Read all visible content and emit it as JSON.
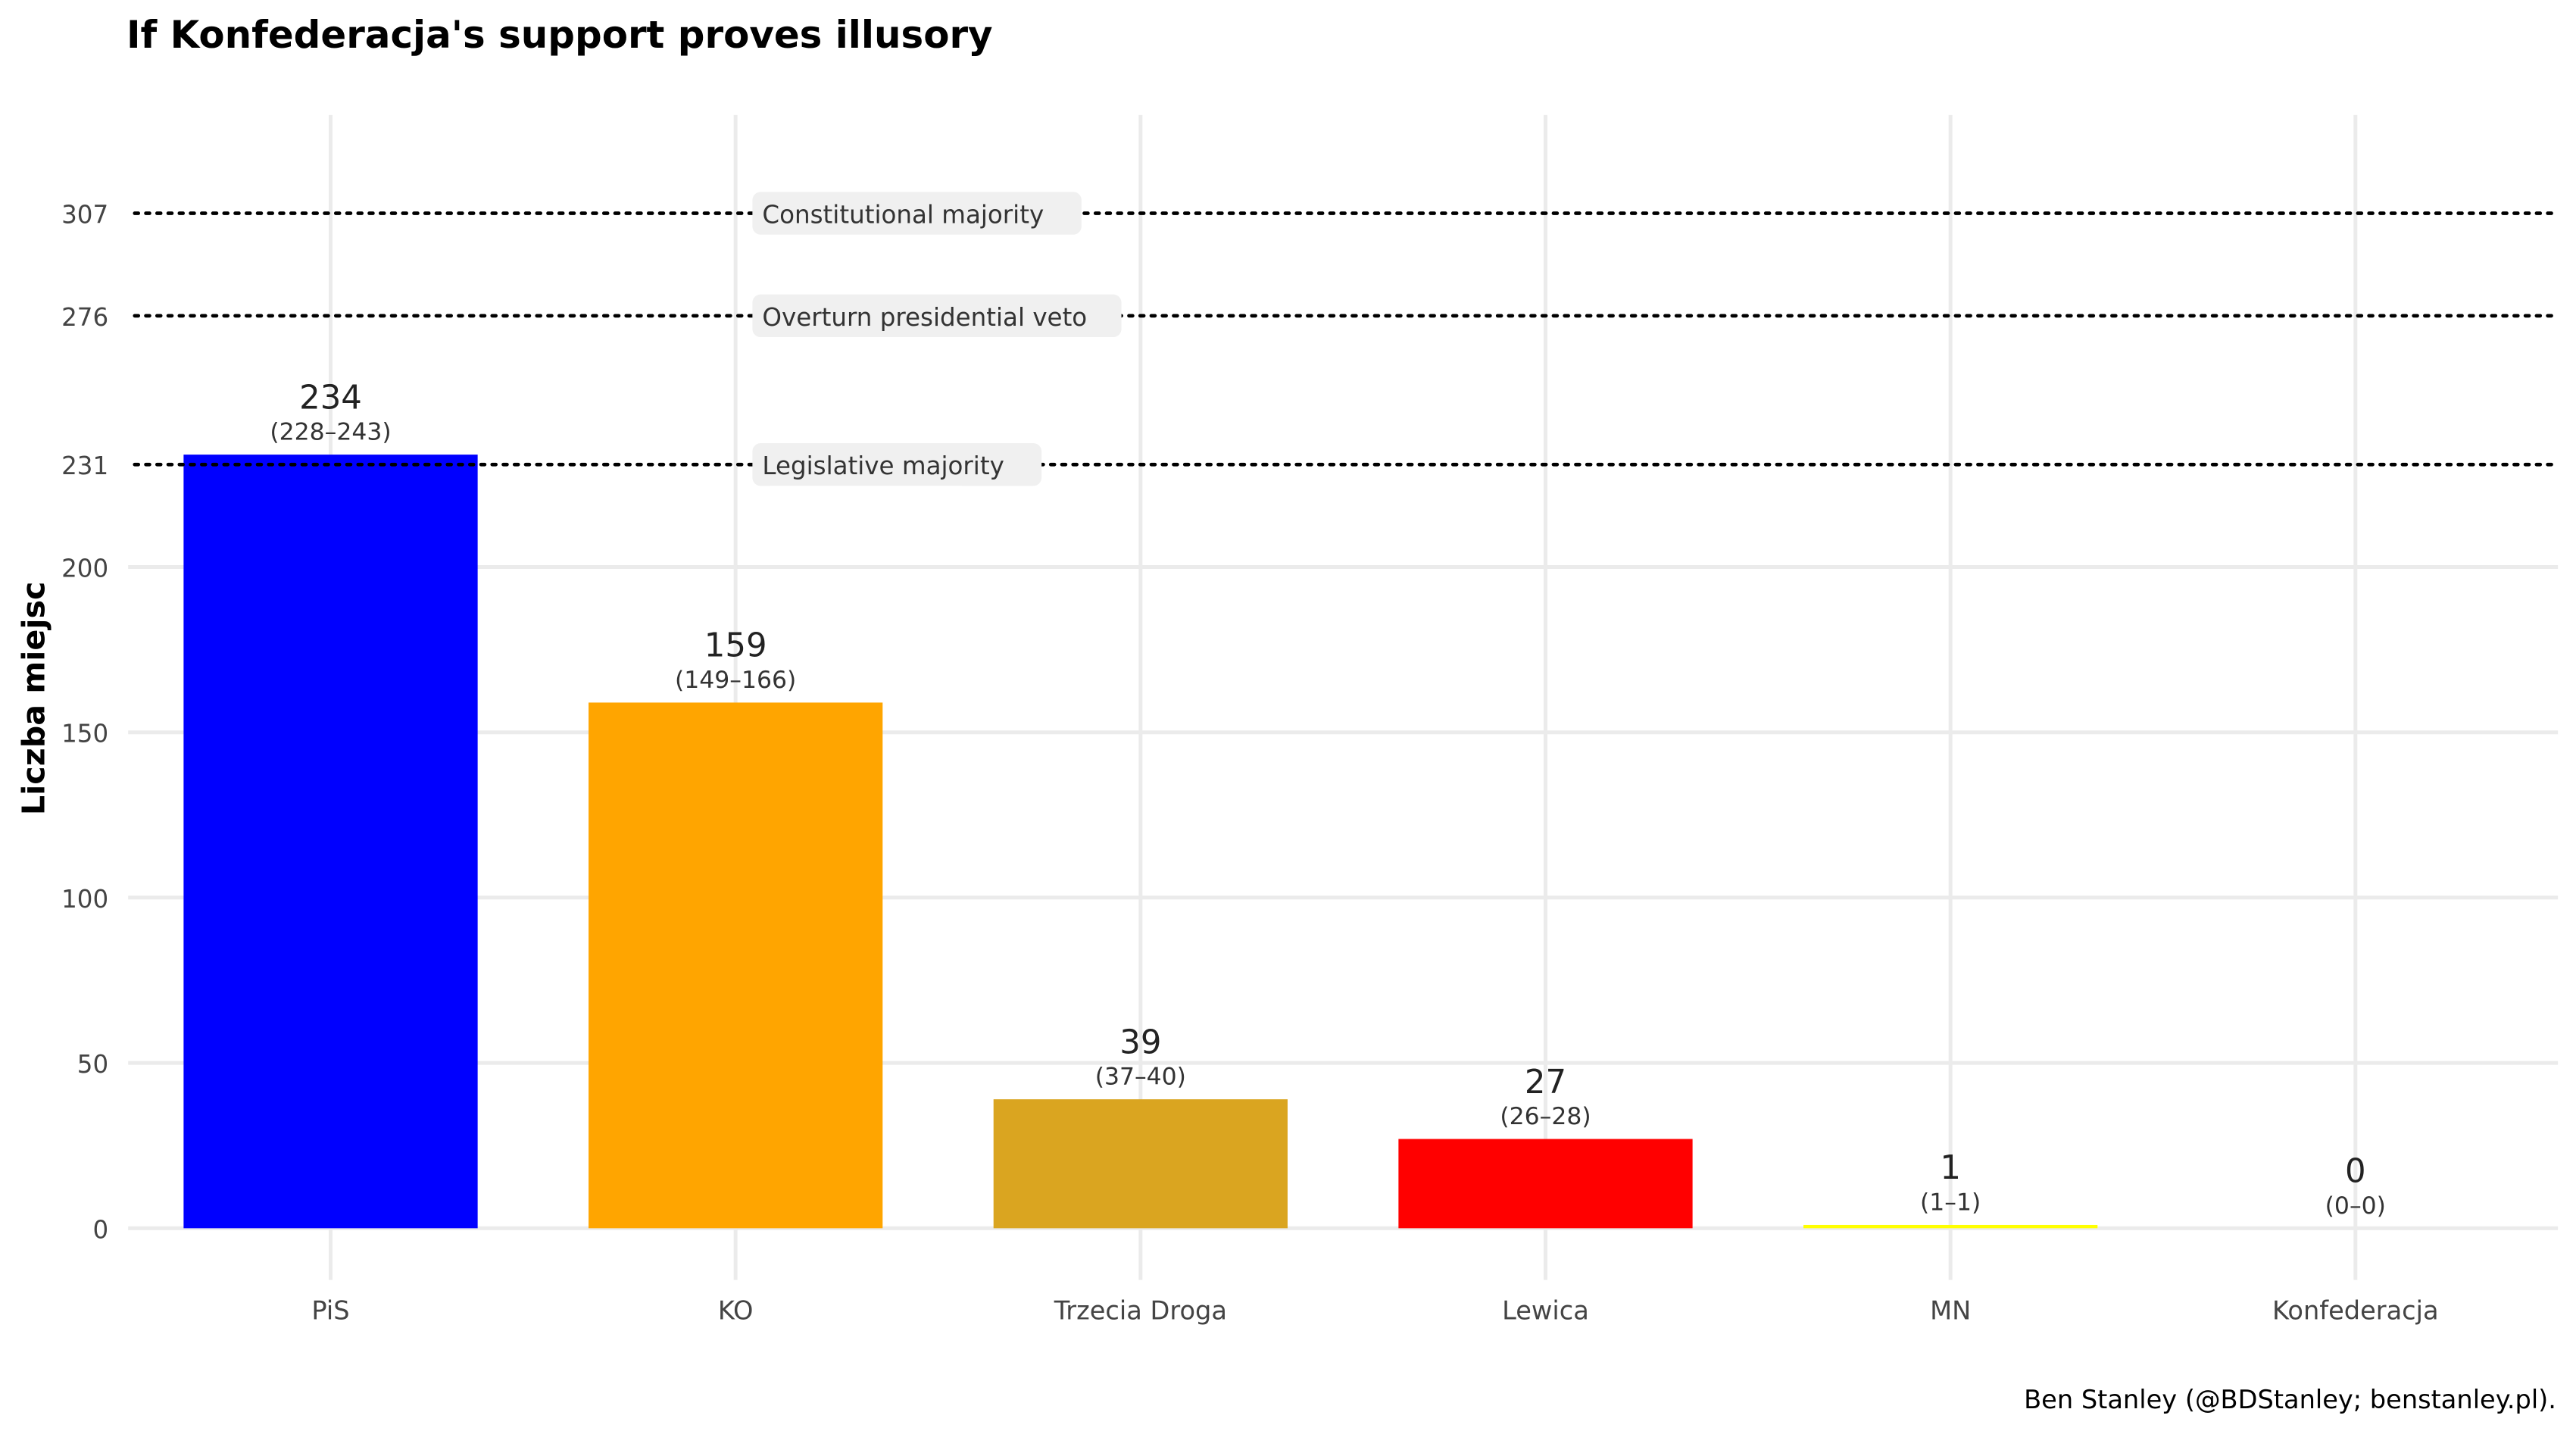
{
  "chart_data": {
    "type": "bar",
    "title": "If Konfederacja's support proves illusory",
    "xlabel": "",
    "ylabel": "Liczba miejsc",
    "caption": "Ben Stanley (@BDStanley; benstanley.pl).",
    "categories": [
      "PiS",
      "KO",
      "Trzecia Droga",
      "Lewica",
      "MN",
      "Konfederacja"
    ],
    "values": [
      234,
      159,
      39,
      27,
      1,
      0
    ],
    "value_labels": [
      "234",
      "159",
      "39",
      "27",
      "1",
      "0"
    ],
    "interval_labels": [
      "(228–243)",
      "(149–166)",
      "(37–40)",
      "(26–28)",
      "(1–1)",
      "(0–0)"
    ],
    "bar_colors": [
      "#0000FF",
      "#FFA500",
      "#DAA520",
      "#FF0000",
      "#FFFF00",
      "#000000"
    ],
    "ylim": [
      0,
      307
    ],
    "y_ticks": [
      0,
      50,
      100,
      150,
      200,
      231,
      276,
      307
    ],
    "y_tick_labels": [
      "0",
      "50",
      "100",
      "150",
      "200",
      "231",
      "276",
      "307"
    ],
    "reference_lines": [
      {
        "value": 307,
        "label": "Constitutional majority"
      },
      {
        "value": 276,
        "label": "Overturn presidential veto"
      },
      {
        "value": 231,
        "label": "Legislative majority"
      }
    ],
    "grid": true,
    "legend": "none"
  }
}
